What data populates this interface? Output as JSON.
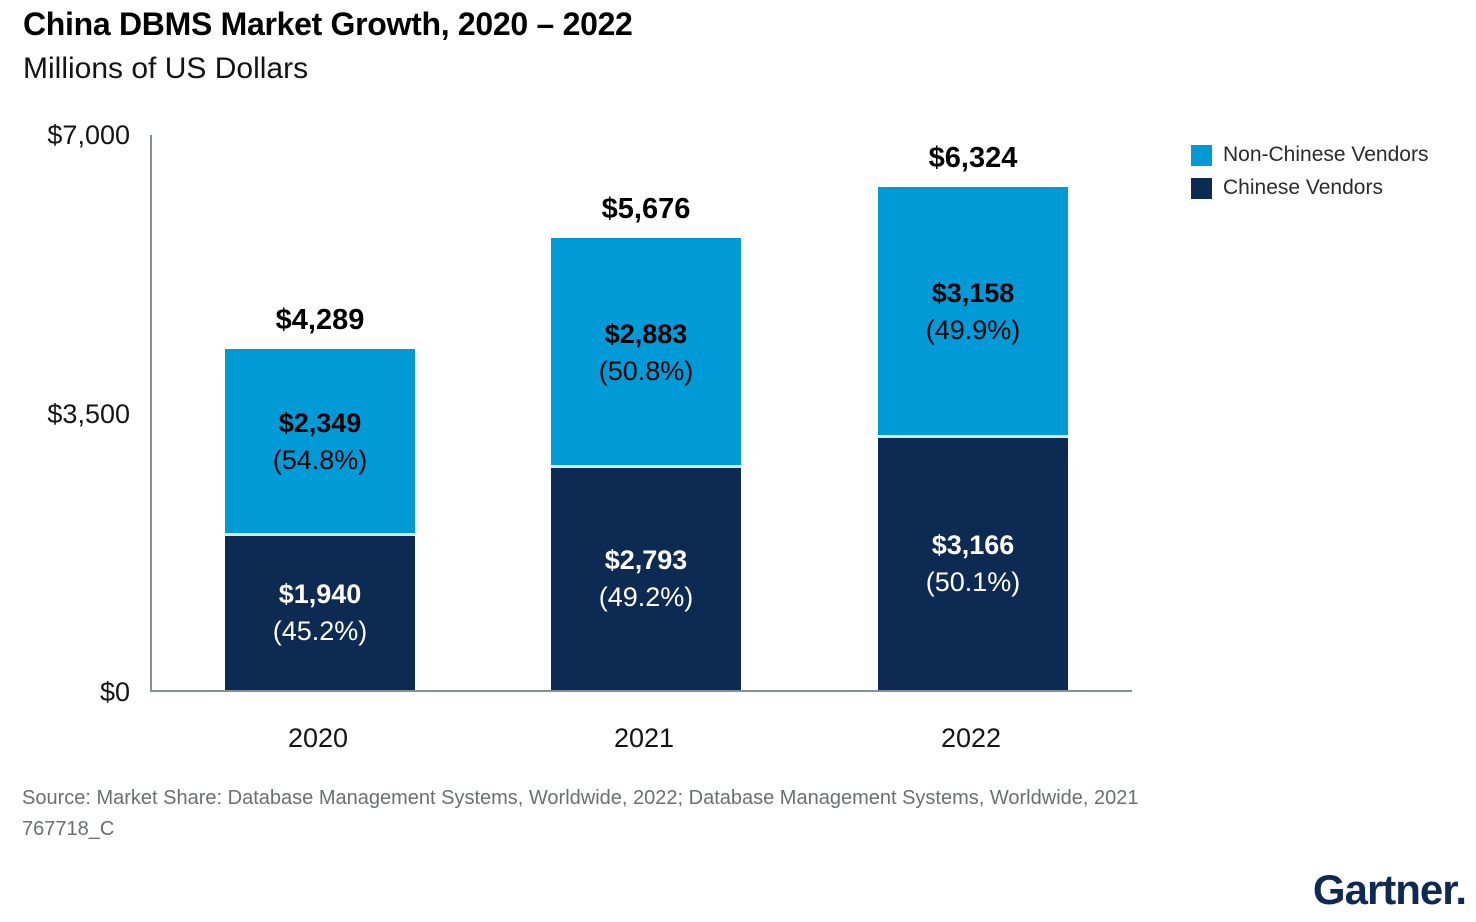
{
  "title": "China DBMS Market Growth, 2020 – 2022",
  "subtitle": "Millions of US Dollars",
  "colors": {
    "non_chinese_blue": "#009AD7",
    "chinese_navy": "#0D2A52",
    "axis_gray": "#859090",
    "segment_divider": "#D9E6F2",
    "source_text_gray": "#6B6F70",
    "gartner_navy": "#0E2A52"
  },
  "legend": {
    "items": [
      {
        "label": "Non-Chinese Vendors",
        "color": "#009AD7"
      },
      {
        "label": "Chinese Vendors",
        "color": "#0D2A52"
      }
    ]
  },
  "chart_data": {
    "type": "bar",
    "stacked": true,
    "stack_order": "bottom-to-top",
    "title": "China DBMS Market Growth, 2020 – 2022",
    "units": "Millions of US Dollars",
    "categories": [
      "2020",
      "2021",
      "2022"
    ],
    "series": [
      {
        "name": "Chinese Vendors",
        "color": "#0D2A52",
        "text_color": "#FFFFFF",
        "values": [
          1940,
          2793,
          3166
        ],
        "value_labels": [
          "$1,940",
          "$2,793",
          "$3,166"
        ],
        "share_labels": [
          "(45.2%)",
          "(49.2%)",
          "(50.1%)"
        ]
      },
      {
        "name": "Non-Chinese Vendors",
        "color": "#009AD7",
        "text_color": "#000000",
        "values": [
          2349,
          2883,
          3158
        ],
        "value_labels": [
          "$2,349",
          "$2,883",
          "$3,158"
        ],
        "share_labels": [
          "(54.8%)",
          "(50.8%)",
          "(49.9%)"
        ]
      }
    ],
    "totals": [
      4289,
      5676,
      6324
    ],
    "total_labels": [
      "$4,289",
      "$5,676",
      "$6,324"
    ],
    "ylim": [
      0,
      7000
    ],
    "yticks": [
      {
        "value": 0,
        "label": "$0"
      },
      {
        "value": 3500,
        "label": "$3,500"
      },
      {
        "value": 7000,
        "label": "$7,000"
      }
    ],
    "grid": false,
    "legend_position": "top-right"
  },
  "source": {
    "line1": "Source: Market Share: Database Management Systems, Worldwide, 2022; Database Management Systems, Worldwide, 2021",
    "line2": "767718_C"
  },
  "logo": {
    "text": "Gartner."
  }
}
